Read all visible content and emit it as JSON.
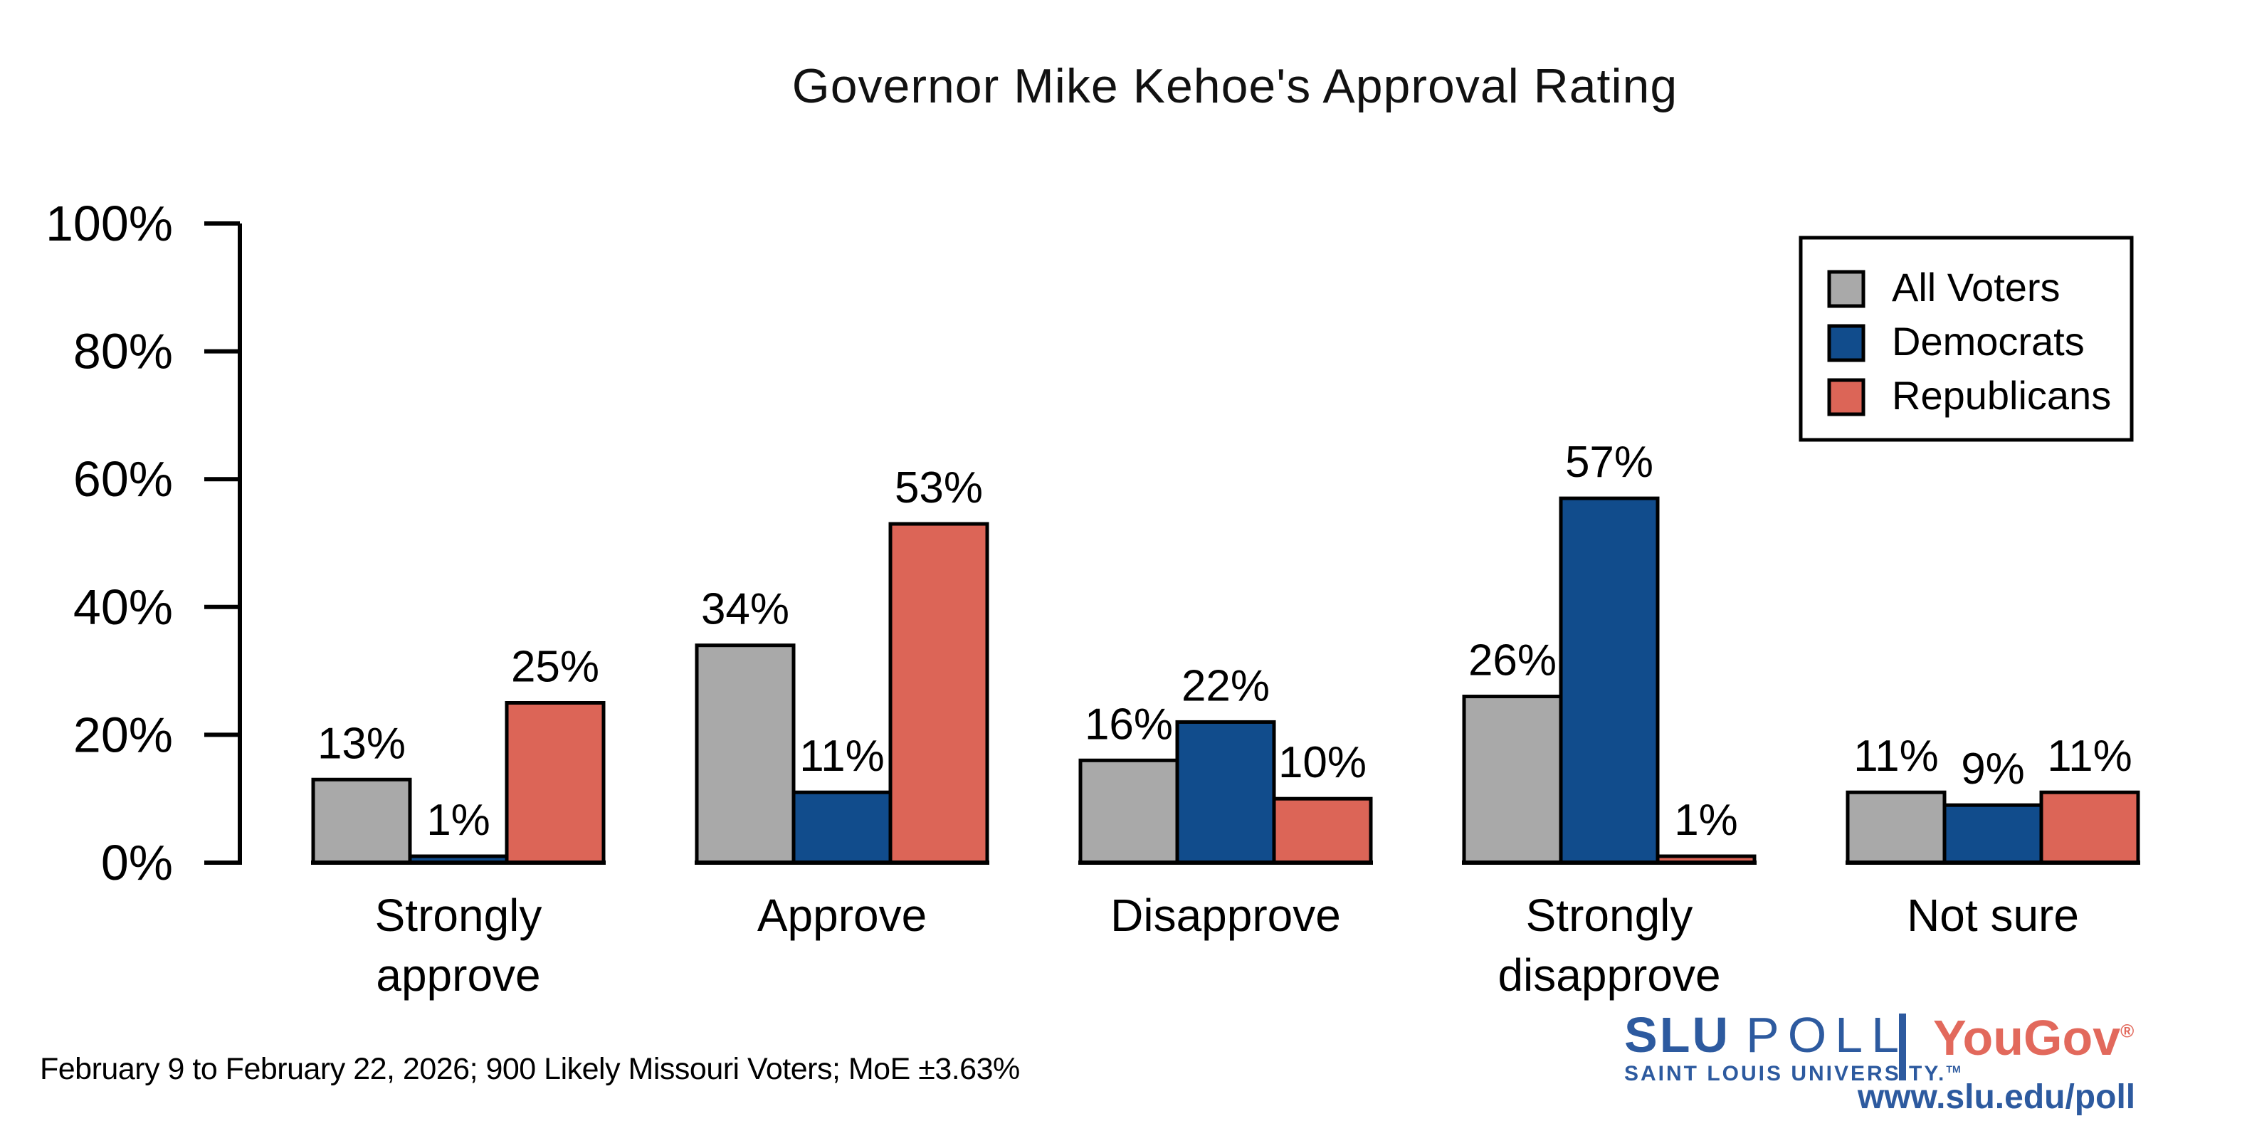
{
  "title": "Governor Mike Kehoe's Approval Rating",
  "footer": {
    "note": "February 9 to February 22, 2026; 900 Likely Missouri Voters; MoE ±3.63%"
  },
  "branding": {
    "slu_name": "SLU",
    "slu_poll": "POLL",
    "slu_sub": "SAINT LOUIS UNIVERSITY.",
    "slu_tm": "TM",
    "yougov": "YouGov",
    "yougov_reg": "®",
    "url": "www.slu.edu/poll",
    "slu_blue": "#2d5a9f",
    "yougov_red": "#e2695c"
  },
  "chart_data": {
    "type": "bar",
    "title": "Governor Mike Kehoe's Approval Rating",
    "categories": [
      "Strongly approve",
      "Approve",
      "Disapprove",
      "Strongly disapprove",
      "Not sure"
    ],
    "series": [
      {
        "name": "All Voters",
        "color": "#a9a9a9",
        "values": [
          13,
          34,
          16,
          26,
          11
        ]
      },
      {
        "name": "Democrats",
        "color": "#114c8c",
        "values": [
          1,
          11,
          22,
          57,
          9
        ]
      },
      {
        "name": "Republicans",
        "color": "#dc6557",
        "values": [
          25,
          53,
          10,
          1,
          11
        ]
      }
    ],
    "xlabel": "",
    "ylabel": "",
    "ylim": [
      0,
      100
    ],
    "yticks": [
      0,
      20,
      40,
      60,
      80,
      100
    ],
    "ytick_labels": [
      "0%",
      "20%",
      "40%",
      "60%",
      "80%",
      "100%"
    ],
    "value_labels": [
      "13%",
      "1%",
      "25%",
      "34%",
      "11%",
      "53%",
      "16%",
      "22%",
      "10%",
      "26%",
      "57%",
      "1%",
      "11%",
      "9%",
      "11%"
    ],
    "grid": false,
    "legend_position": "top-right",
    "bar_border_color": "#000000",
    "axis_color": "#000000"
  }
}
